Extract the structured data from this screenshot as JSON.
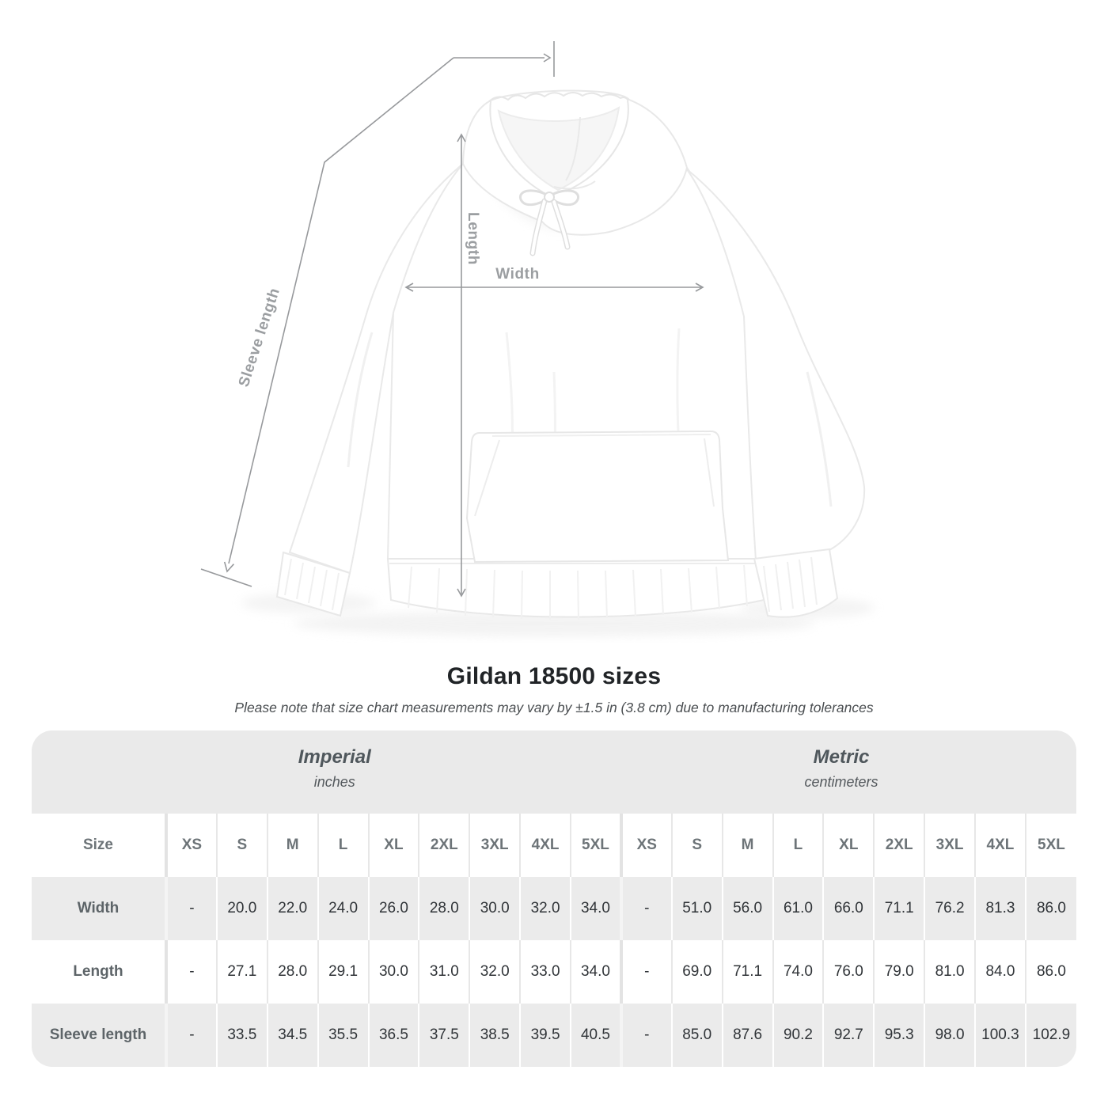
{
  "figure": {
    "annotations": {
      "length_label": "Length",
      "width_label": "Width",
      "sleeve_label": "Sleeve length"
    }
  },
  "chart_data": {
    "type": "table",
    "title": "Gildan 18500 sizes",
    "note": "Please note that size chart measurements may vary by ±1.5 in (3.8 cm) due to manufacturing tolerances",
    "size_column_header": "Size",
    "column_groups": [
      {
        "label": "Imperial",
        "unit": "inches",
        "sizes": [
          "XS",
          "S",
          "M",
          "L",
          "XL",
          "2XL",
          "3XL",
          "4XL",
          "5XL"
        ]
      },
      {
        "label": "Metric",
        "unit": "centimeters",
        "sizes": [
          "XS",
          "S",
          "M",
          "L",
          "XL",
          "2XL",
          "3XL",
          "4XL",
          "5XL"
        ]
      }
    ],
    "rows": [
      {
        "label": "Width",
        "values_imperial": [
          "-",
          "20.0",
          "22.0",
          "24.0",
          "26.0",
          "28.0",
          "30.0",
          "32.0",
          "34.0"
        ],
        "values_metric": [
          "-",
          "51.0",
          "56.0",
          "61.0",
          "66.0",
          "71.1",
          "76.2",
          "81.3",
          "86.0"
        ]
      },
      {
        "label": "Length",
        "values_imperial": [
          "-",
          "27.1",
          "28.0",
          "29.1",
          "30.0",
          "31.0",
          "32.0",
          "33.0",
          "34.0"
        ],
        "values_metric": [
          "-",
          "69.0",
          "71.1",
          "74.0",
          "76.0",
          "79.0",
          "81.0",
          "84.0",
          "86.0"
        ]
      },
      {
        "label": "Sleeve length",
        "values_imperial": [
          "-",
          "33.5",
          "34.5",
          "35.5",
          "36.5",
          "37.5",
          "38.5",
          "39.5",
          "40.5"
        ],
        "values_metric": [
          "-",
          "85.0",
          "87.6",
          "90.2",
          "92.7",
          "95.3",
          "98.0",
          "100.3",
          "102.9"
        ]
      }
    ]
  },
  "colors": {
    "band_gray": "#eaeaea",
    "row_gray": "#ebebeb",
    "row_white": "#ffffff",
    "header_text": "#6d7478",
    "value_text": "#303438",
    "title_text": "#212427",
    "subtitle_text": "#4a4e51",
    "measure_line": "#97999c",
    "measure_label": "#9b9ea1"
  }
}
